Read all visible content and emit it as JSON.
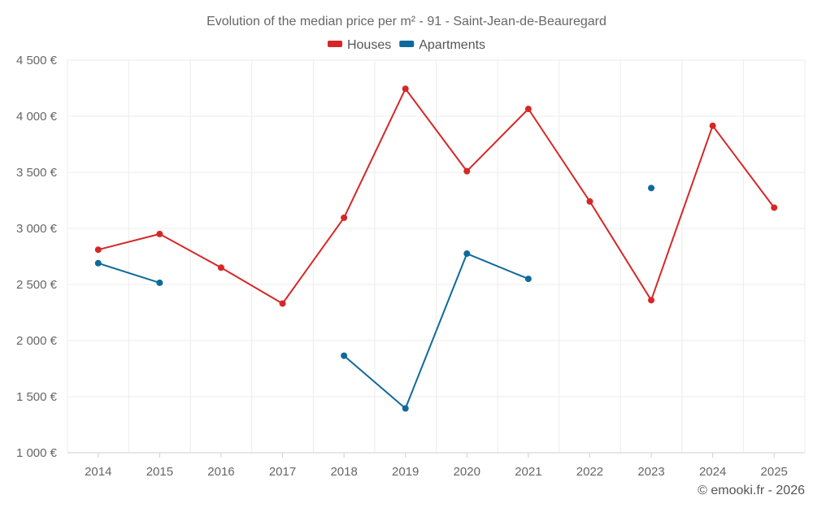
{
  "chart_data": {
    "type": "line",
    "title": "Evolution of the median price per m² - 91 - Saint-Jean-de-Beauregard",
    "xlabel": "",
    "ylabel": "",
    "x": [
      "2014",
      "2015",
      "2016",
      "2017",
      "2018",
      "2019",
      "2020",
      "2021",
      "2022",
      "2023",
      "2024",
      "2025"
    ],
    "ylim": [
      1000,
      4500
    ],
    "yticks": [
      "1 000 €",
      "1 500 €",
      "2 000 €",
      "2 500 €",
      "3 000 €",
      "3 500 €",
      "4 000 €",
      "4 500 €"
    ],
    "ytick_values": [
      1000,
      1500,
      2000,
      2500,
      3000,
      3500,
      4000,
      4500
    ],
    "legend_position": "top-center",
    "grid": true,
    "series": [
      {
        "name": "Houses",
        "color": "#d62728",
        "values": [
          2810,
          2950,
          2650,
          2330,
          3095,
          4245,
          3510,
          4065,
          3240,
          2360,
          3915,
          3185
        ]
      },
      {
        "name": "Apartments",
        "color": "#0e6a9b",
        "values": [
          2690,
          2515,
          null,
          null,
          1865,
          1395,
          2775,
          2550,
          null,
          3360,
          null,
          null
        ]
      }
    ]
  },
  "credit": "© emooki.fr - 2026"
}
